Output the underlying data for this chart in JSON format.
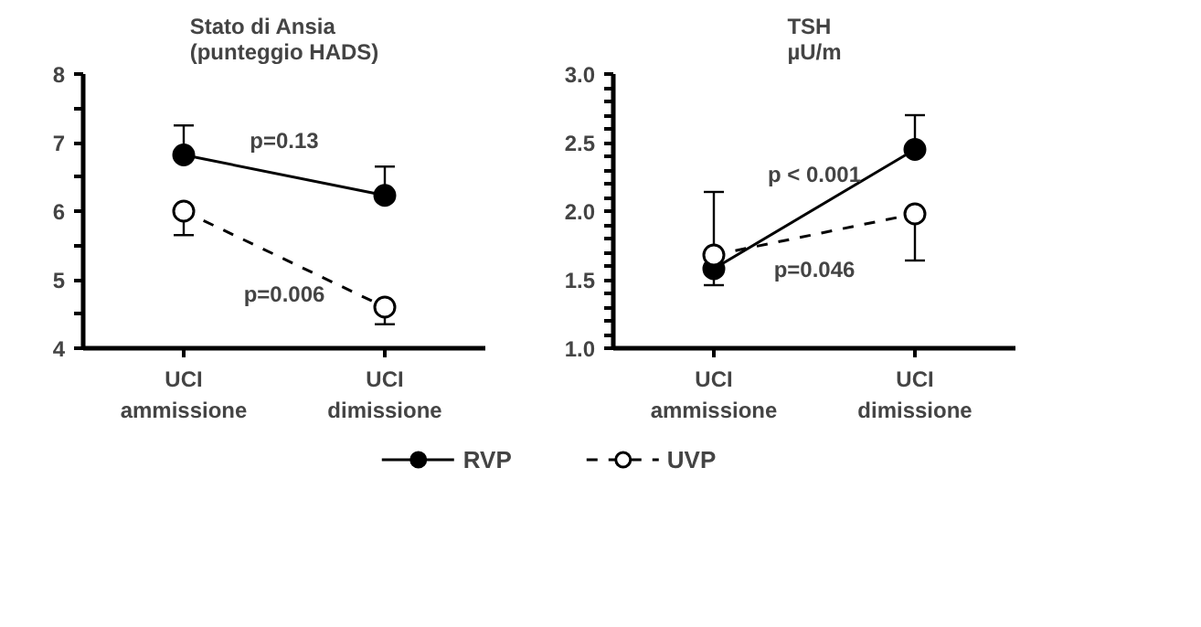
{
  "chart_data": [
    {
      "type": "line",
      "title": "Stato di Ansia\n(punteggio HADS)",
      "categories": [
        "UCI\nammissione",
        "UCI\ndimissione"
      ],
      "ylim": [
        4,
        8
      ],
      "yticks": [
        4,
        {
          "value": 4.5,
          "label": null
        },
        5,
        {
          "value": 5.5,
          "label": null
        },
        6,
        {
          "value": 6.5,
          "label": null
        },
        7,
        {
          "value": 7.5,
          "label": null
        },
        8
      ],
      "grid": false,
      "legend": "bottom",
      "marker": "circle",
      "series": [
        {
          "name": "RVP",
          "color": "#000000",
          "line_style": "solid",
          "values": [
            6.82,
            6.23
          ],
          "errors": [
            [
              6.82,
              7.25
            ],
            [
              6.23,
              6.65
            ]
          ]
        },
        {
          "name": "UVP",
          "color": "#000000",
          "line_style": "dashed",
          "values": [
            6.0,
            4.6
          ],
          "errors": [
            [
              5.65,
              6.0
            ],
            [
              4.35,
              4.6
            ]
          ]
        }
      ],
      "annotations": [
        "p=0.13",
        "p=0.006"
      ]
    },
    {
      "type": "line",
      "title": "TSH\nµU/m",
      "categories": [
        "UCI\nammissione",
        "UCI\ndimissione"
      ],
      "ylim": [
        1.0,
        3.0
      ],
      "yticks": [
        {
          "value": 1.0,
          "label": "1.0"
        },
        {
          "value": 1.1,
          "label": null
        },
        {
          "value": 1.2,
          "label": null
        },
        {
          "value": 1.3,
          "label": null
        },
        {
          "value": 1.4,
          "label": null
        },
        1.5,
        {
          "value": 1.6,
          "label": null
        },
        {
          "value": 1.7,
          "label": null
        },
        {
          "value": 1.8,
          "label": null
        },
        {
          "value": 1.9,
          "label": null
        },
        {
          "value": 2.0,
          "label": "2.0"
        },
        {
          "value": 2.1,
          "label": null
        },
        {
          "value": 2.2,
          "label": null
        },
        {
          "value": 2.3,
          "label": null
        },
        {
          "value": 2.4,
          "label": null
        },
        2.5,
        {
          "value": 2.6,
          "label": null
        },
        {
          "value": 2.7,
          "label": null
        },
        {
          "value": 2.8,
          "label": null
        },
        {
          "value": 2.9,
          "label": null
        },
        {
          "value": 3.0,
          "label": "3.0"
        }
      ],
      "grid": false,
      "legend": false,
      "marker": "circle",
      "series": [
        {
          "color": "#000000",
          "line_style": "solid",
          "values": [
            1.58,
            2.45
          ],
          "errors": [
            [
              1.46,
              1.58
            ],
            [
              2.45,
              2.7
            ]
          ]
        },
        {
          "color": "#000000",
          "line_style": "dashed",
          "values": [
            1.68,
            1.98
          ],
          "errors": [
            [
              1.68,
              2.14
            ],
            [
              1.64,
              1.98
            ]
          ]
        }
      ],
      "annotations": [
        "p < 0.001",
        "p=0.046"
      ]
    }
  ]
}
